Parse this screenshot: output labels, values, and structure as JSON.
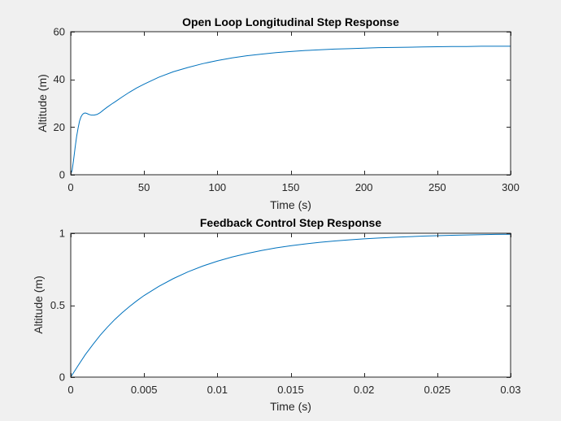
{
  "chart_data": [
    {
      "type": "line",
      "title": "Open Loop Longitudinal Step Response",
      "xlabel": "Time (s)",
      "ylabel": "Altitude (m)",
      "xlim": [
        0,
        300
      ],
      "ylim": [
        0,
        60
      ],
      "xticks": [
        0,
        50,
        100,
        150,
        200,
        250,
        300
      ],
      "yticks": [
        0,
        20,
        40,
        60
      ],
      "grid": false,
      "color": "#0072bd",
      "series": [
        {
          "x": [
            0,
            1,
            2,
            3,
            4,
            5,
            6,
            7,
            8,
            9,
            10,
            11,
            12,
            14,
            16,
            18,
            20,
            22,
            25,
            28,
            30,
            35,
            40,
            45,
            50,
            60,
            70,
            80,
            90,
            100,
            110,
            120,
            130,
            140,
            150,
            160,
            170,
            180,
            190,
            200,
            210,
            220,
            230,
            240,
            250,
            260,
            270,
            280,
            290,
            300
          ],
          "y": [
            0,
            2,
            6.5,
            11.5,
            16,
            19.5,
            22.5,
            24.3,
            25.3,
            25.8,
            25.9,
            25.7,
            25.4,
            25,
            25,
            25.3,
            26,
            27,
            28.4,
            29.7,
            30.5,
            32.6,
            34.6,
            36.4,
            38,
            40.9,
            43.2,
            45,
            46.6,
            47.9,
            49,
            49.9,
            50.6,
            51.2,
            51.7,
            52.1,
            52.4,
            52.7,
            52.9,
            53.1,
            53.3,
            53.4,
            53.5,
            53.6,
            53.7,
            53.8,
            53.8,
            53.9,
            53.9,
            53.9
          ]
        }
      ]
    },
    {
      "type": "line",
      "title": "Feedback Control Step Response",
      "xlabel": "Time (s)",
      "ylabel": "Altitude (m)",
      "xlim": [
        0,
        0.03
      ],
      "ylim": [
        0,
        1
      ],
      "xticks": [
        0,
        0.005,
        0.01,
        0.015,
        0.02,
        0.025,
        0.03
      ],
      "yticks": [
        0,
        0.5,
        1
      ],
      "grid": false,
      "color": "#0072bd",
      "series": [
        {
          "x": [
            0,
            0.0005,
            0.001,
            0.0015,
            0.002,
            0.0025,
            0.003,
            0.0035,
            0.004,
            0.0045,
            0.005,
            0.006,
            0.007,
            0.008,
            0.009,
            0.01,
            0.011,
            0.012,
            0.013,
            0.014,
            0.015,
            0.016,
            0.017,
            0.018,
            0.019,
            0.02,
            0.021,
            0.022,
            0.023,
            0.024,
            0.025,
            0.026,
            0.027,
            0.028,
            0.029,
            0.03
          ],
          "y": [
            0,
            0.08,
            0.157,
            0.225,
            0.29,
            0.347,
            0.4,
            0.447,
            0.49,
            0.53,
            0.567,
            0.63,
            0.685,
            0.732,
            0.772,
            0.806,
            0.835,
            0.859,
            0.88,
            0.898,
            0.913,
            0.926,
            0.937,
            0.946,
            0.954,
            0.961,
            0.967,
            0.972,
            0.976,
            0.98,
            0.983,
            0.986,
            0.988,
            0.99,
            0.992,
            0.993
          ]
        }
      ]
    }
  ]
}
